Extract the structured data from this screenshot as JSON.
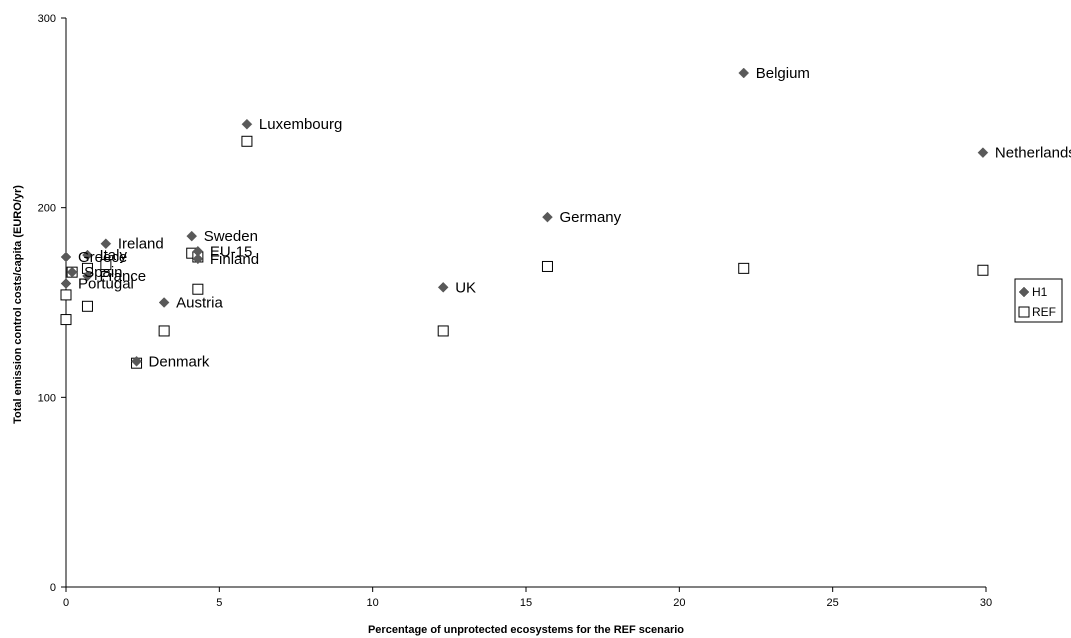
{
  "chart_data": {
    "type": "scatter",
    "xlabel": "Percentage of unprotected ecosystems for the REF scenario",
    "ylabel": "Total emission control costs/capita (EURO/yr)",
    "xlim": [
      0,
      30
    ],
    "ylim": [
      0,
      300
    ],
    "xticks": [
      0,
      5,
      10,
      15,
      20,
      25,
      30
    ],
    "yticks": [
      0,
      100,
      200,
      300
    ],
    "grid": false,
    "legend_position": "right",
    "series": [
      {
        "name": "H1",
        "marker": "diamond",
        "color": "#595959",
        "points": [
          {
            "x": 22.1,
            "y": 271,
            "label": "Belgium"
          },
          {
            "x": 5.9,
            "y": 244,
            "label": "Luxembourg"
          },
          {
            "x": 29.9,
            "y": 229,
            "label": "Netherlands"
          },
          {
            "x": 15.7,
            "y": 195,
            "label": "Germany"
          },
          {
            "x": 4.1,
            "y": 185,
            "label": "Sweden"
          },
          {
            "x": 1.3,
            "y": 181,
            "label": "Ireland"
          },
          {
            "x": 4.3,
            "y": 177,
            "label": "EU-15"
          },
          {
            "x": 0.7,
            "y": 175,
            "label": "Italy"
          },
          {
            "x": 0.0,
            "y": 174,
            "label": "Greece"
          },
          {
            "x": 4.3,
            "y": 173,
            "label": "Finland"
          },
          {
            "x": 0.2,
            "y": 166,
            "label": "Spain"
          },
          {
            "x": 0.7,
            "y": 164,
            "label": "France"
          },
          {
            "x": 0.0,
            "y": 160,
            "label": "Portugal"
          },
          {
            "x": 12.3,
            "y": 158,
            "label": "UK"
          },
          {
            "x": 3.2,
            "y": 150,
            "label": "Austria"
          },
          {
            "x": 2.3,
            "y": 119,
            "label": "Denmark"
          }
        ]
      },
      {
        "name": "REF",
        "marker": "square",
        "color": "#000000",
        "points": [
          {
            "x": 22.1,
            "y": 168
          },
          {
            "x": 5.9,
            "y": 235
          },
          {
            "x": 29.9,
            "y": 167
          },
          {
            "x": 15.7,
            "y": 169
          },
          {
            "x": 4.1,
            "y": 176
          },
          {
            "x": 1.3,
            "y": 170
          },
          {
            "x": 4.3,
            "y": 174
          },
          {
            "x": 0.7,
            "y": 148
          },
          {
            "x": 0.0,
            "y": 141
          },
          {
            "x": 4.3,
            "y": 157
          },
          {
            "x": 0.2,
            "y": 166
          },
          {
            "x": 0.7,
            "y": 168
          },
          {
            "x": 0.0,
            "y": 154
          },
          {
            "x": 12.3,
            "y": 135
          },
          {
            "x": 3.2,
            "y": 135
          },
          {
            "x": 2.3,
            "y": 118
          }
        ]
      }
    ]
  }
}
